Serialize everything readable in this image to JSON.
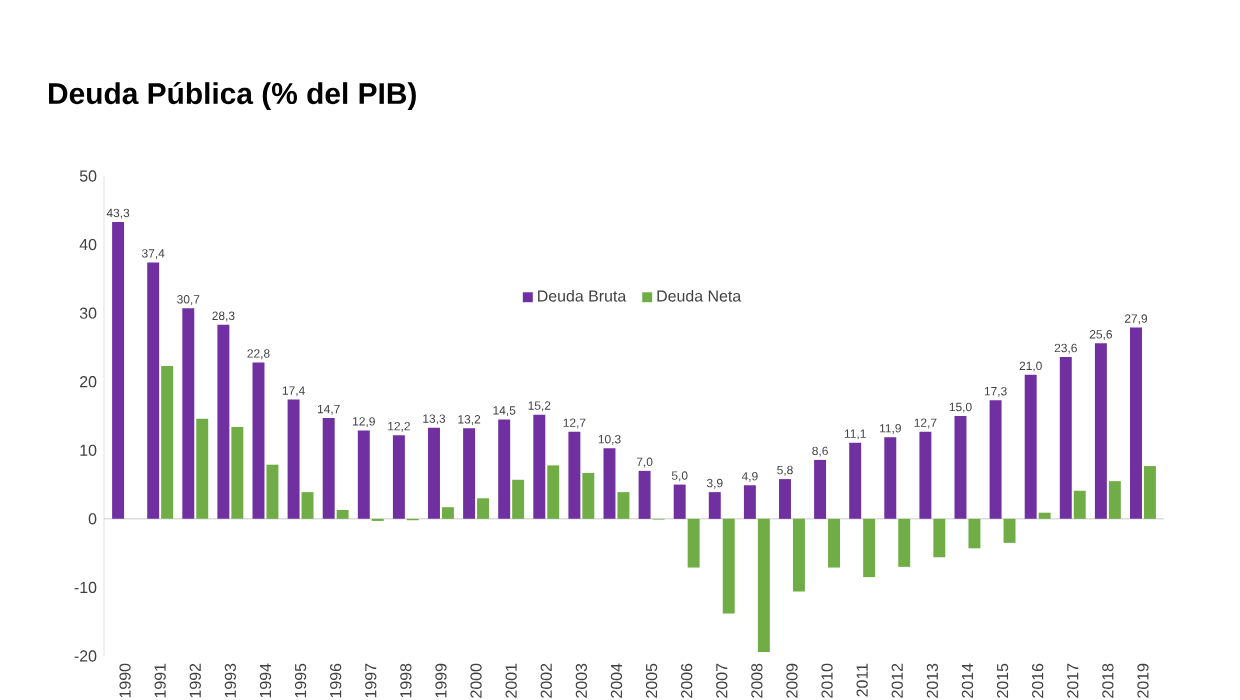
{
  "chart_data": {
    "type": "bar",
    "title": "Deuda Pública (% del PIB)",
    "categories": [
      "1990",
      "1991",
      "1992",
      "1993",
      "1994",
      "1995",
      "1996",
      "1997",
      "1998",
      "1999",
      "2000",
      "2001",
      "2002",
      "2003",
      "2004",
      "2005",
      "2006",
      "2007",
      "2008",
      "2009",
      "2010",
      "2011",
      "2012",
      "2013",
      "2014",
      "2015",
      "2016",
      "2017",
      "2018",
      "2019"
    ],
    "series": [
      {
        "name": "Deuda Bruta",
        "color": "#7030a0",
        "values": [
          43.3,
          37.4,
          30.7,
          28.3,
          22.8,
          17.4,
          14.7,
          12.9,
          12.2,
          13.3,
          13.2,
          14.5,
          15.2,
          12.7,
          10.3,
          7.0,
          5.0,
          3.9,
          4.9,
          5.8,
          8.6,
          11.1,
          11.9,
          12.7,
          15.0,
          17.3,
          21.0,
          23.6,
          25.6,
          27.9
        ],
        "value_labels": [
          "43,3",
          "37,4",
          "30,7",
          "28,3",
          "22,8",
          "17,4",
          "14,7",
          "12,9",
          "12,2",
          "13,3",
          "13,2",
          "14,5",
          "15,2",
          "12,7",
          "10,3",
          "7,0",
          "5,0",
          "3,9",
          "4,9",
          "5,8",
          "8,6",
          "11,1",
          "11,9",
          "12,7",
          "15,0",
          "17,3",
          "21,0",
          "23,6",
          "25,6",
          "27,9"
        ]
      },
      {
        "name": "Deuda Neta",
        "color": "#70ad47",
        "values": [
          null,
          22.3,
          14.6,
          13.4,
          7.9,
          3.9,
          1.3,
          -0.3,
          -0.2,
          1.7,
          3.0,
          5.7,
          7.8,
          6.7,
          3.9,
          -0.1,
          -7.1,
          -13.8,
          -19.4,
          -10.6,
          -7.1,
          -8.5,
          -7.0,
          -5.6,
          -4.3,
          -3.5,
          0.9,
          4.1,
          5.5,
          7.7
        ]
      }
    ],
    "ylim": [
      -20,
      50
    ],
    "yticks": [
      -20,
      -10,
      0,
      10,
      20,
      30,
      40,
      50
    ],
    "legend": "top"
  }
}
